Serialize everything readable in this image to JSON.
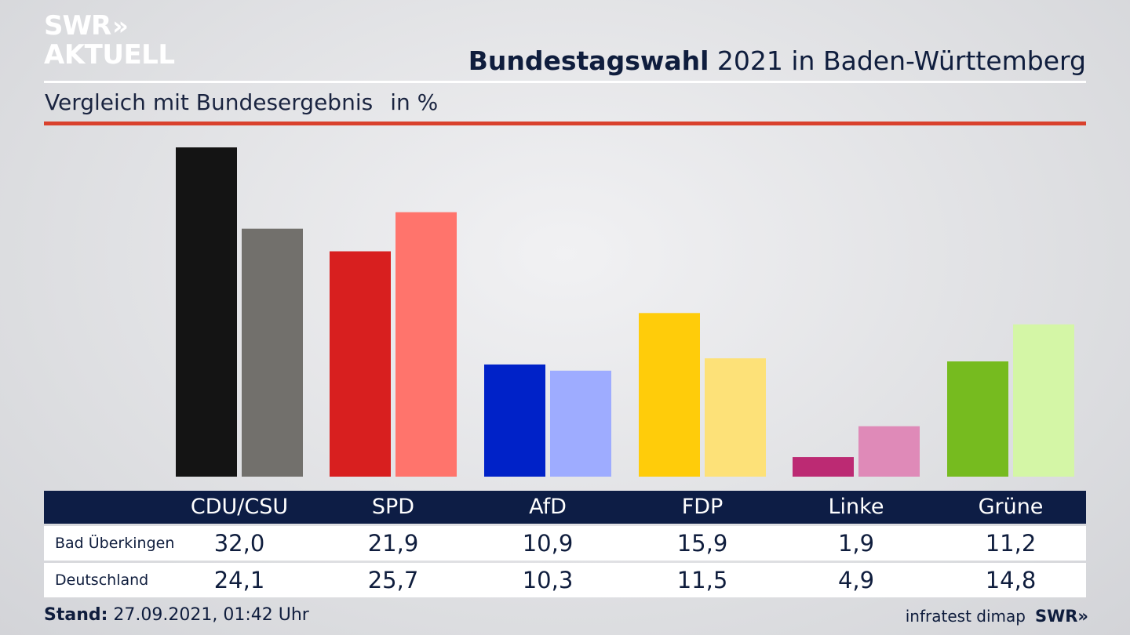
{
  "logo": {
    "line1": "SWR",
    "chevrons": "»",
    "line2": "AKTUELL"
  },
  "header": {
    "title_bold": "Bundestagswahl",
    "title_rest": "2021 in Baden-Württemberg",
    "subtitle": "Vergleich mit Bundesergebnis",
    "unit": "in %"
  },
  "chart_data": {
    "type": "bar",
    "categories": [
      "CDU/CSU",
      "SPD",
      "AfD",
      "FDP",
      "Linke",
      "Grüne"
    ],
    "series": [
      {
        "name": "Bad Überkingen",
        "values": [
          32.0,
          21.9,
          10.9,
          15.9,
          1.9,
          11.2
        ],
        "display": [
          "32,0",
          "21,9",
          "10,9",
          "15,9",
          "1,9",
          "11,2"
        ]
      },
      {
        "name": "Deutschland",
        "values": [
          24.1,
          25.7,
          10.3,
          11.5,
          4.9,
          14.8
        ],
        "display": [
          "24,1",
          "25,7",
          "10,3",
          "11,5",
          "4,9",
          "14,8"
        ]
      }
    ],
    "colors": {
      "primary": [
        "#141414",
        "#d81f1f",
        "#0022c8",
        "#ffcc0a",
        "#bc2a73",
        "#76bb1f"
      ],
      "secondary": [
        "#72706c",
        "#ff746c",
        "#9eacff",
        "#fde178",
        "#df8ab8",
        "#d4f6a6"
      ]
    },
    "ylim": [
      0,
      32
    ]
  },
  "footer": {
    "label": "Stand:",
    "timestamp": "27.09.2021, 01:42 Uhr"
  },
  "source": {
    "text": "infratest dimap",
    "brand": "SWR",
    "chevrons": "»"
  }
}
